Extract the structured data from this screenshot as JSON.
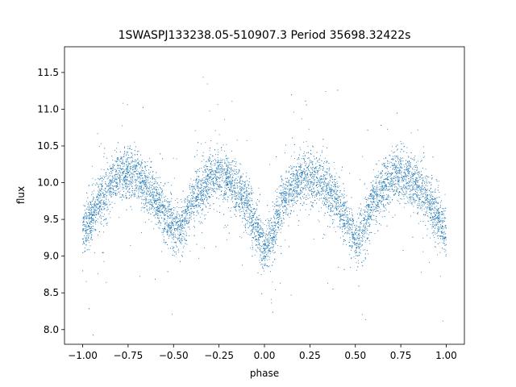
{
  "chart_data": {
    "type": "scatter",
    "title": "1SWASPJ133238.05-510907.3 Period 35698.32422s",
    "xlabel": "phase",
    "ylabel": "flux",
    "xlim": [
      -1.1,
      1.1
    ],
    "ylim": [
      7.8,
      11.85
    ],
    "xticks": [
      -1.0,
      -0.75,
      -0.5,
      -0.25,
      0.0,
      0.25,
      0.5,
      0.75,
      1.0
    ],
    "xtick_labels": [
      "−1.00",
      "−0.75",
      "−0.50",
      "−0.25",
      "0.00",
      "0.25",
      "0.50",
      "0.75",
      "1.00"
    ],
    "yticks": [
      8.0,
      8.5,
      9.0,
      9.5,
      10.0,
      10.5,
      11.0,
      11.5
    ],
    "ytick_labels": [
      "8.0",
      "8.5",
      "9.0",
      "9.5",
      "10.0",
      "10.5",
      "11.0",
      "11.5"
    ],
    "grid": false,
    "marker_color": "#1f77b4",
    "series": [
      {
        "x": [
          -1.0,
          -0.9,
          -0.8,
          -0.75,
          -0.7,
          -0.6,
          -0.5,
          -0.45,
          -0.4,
          -0.3,
          -0.25,
          -0.2,
          -0.1,
          0.0,
          0.05,
          0.1,
          0.2,
          0.25,
          0.3,
          0.4,
          0.5,
          0.55,
          0.6,
          0.7,
          0.75,
          0.8,
          0.9,
          1.0
        ],
        "y": [
          9.3,
          9.8,
          10.1,
          10.15,
          10.1,
          9.8,
          9.35,
          9.4,
          9.75,
          10.05,
          10.1,
          10.05,
          9.75,
          9.05,
          9.3,
          9.75,
          10.05,
          10.1,
          10.05,
          9.75,
          9.2,
          9.35,
          9.75,
          10.05,
          10.1,
          10.05,
          9.8,
          9.3
        ]
      }
    ]
  }
}
